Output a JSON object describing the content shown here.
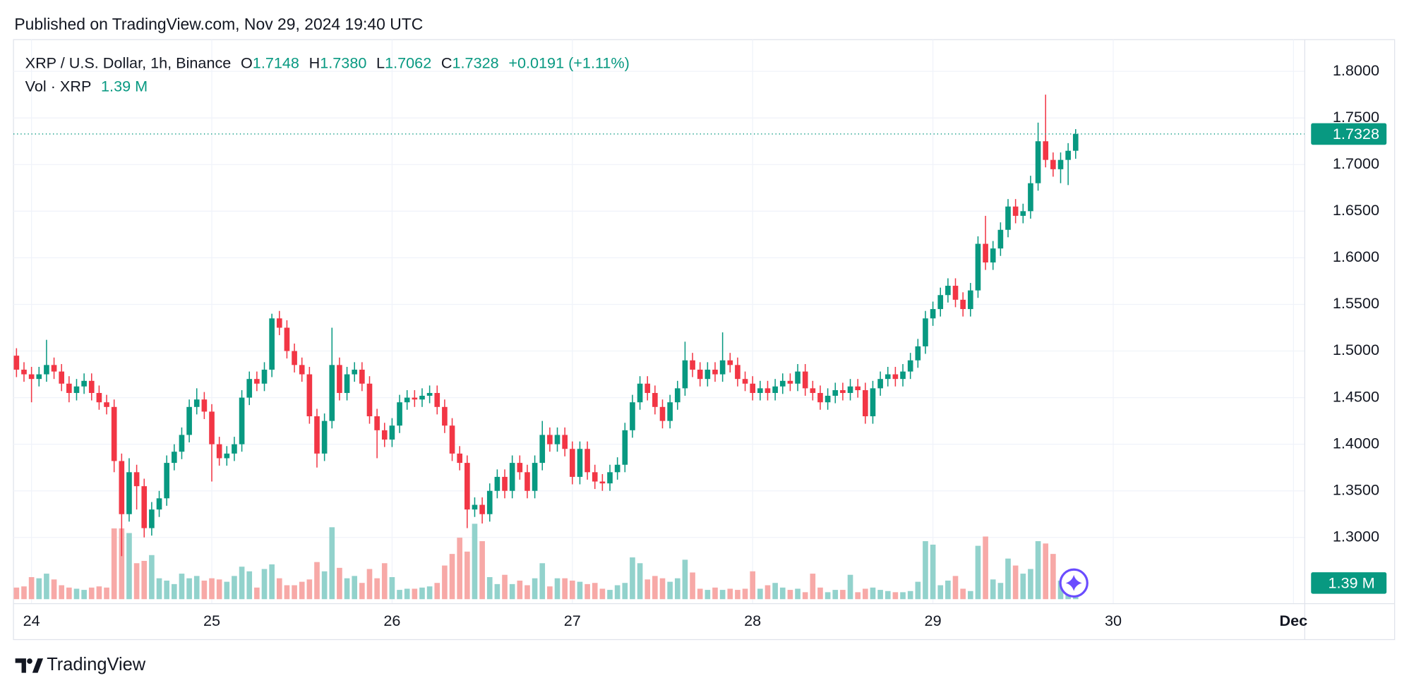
{
  "header": {
    "published": "Published on TradingView.com, Nov 29, 2024 19:40 UTC"
  },
  "legend": {
    "symbol": "XRP / U.S. Dollar, 1h, Binance",
    "ohlc": [
      {
        "key": "O",
        "text": "1.7148"
      },
      {
        "key": "H",
        "text": "1.7380"
      },
      {
        "key": "L",
        "text": "1.7062"
      },
      {
        "key": "C",
        "text": "1.7328"
      }
    ],
    "change": "+0.0191 (+1.11%)",
    "volume_name": "Vol · XRP",
    "volume_text": "1.39 M"
  },
  "footer": {
    "brand": "TradingView"
  },
  "chart_data": {
    "type": "candlestick",
    "up_color": "#089981",
    "down_color": "#f23645",
    "up_volume_color": "#92d2cc",
    "down_volume_color": "#f7a9a7",
    "grid": true,
    "xlim": [
      -0.4,
      171.5
    ],
    "xticks": [
      {
        "value": 2,
        "label": "24"
      },
      {
        "value": 26,
        "label": "25"
      },
      {
        "value": 50,
        "label": "26"
      },
      {
        "value": 74,
        "label": "27"
      },
      {
        "value": 98,
        "label": "28"
      },
      {
        "value": 122,
        "label": "29"
      },
      {
        "value": 146,
        "label": "30"
      },
      {
        "value": 170,
        "label": "Dec"
      }
    ],
    "ylim": [
      1.229,
      1.834
    ],
    "yticks": [
      {
        "value": 1.3,
        "label": "1.3000"
      },
      {
        "value": 1.35,
        "label": "1.3500"
      },
      {
        "value": 1.4,
        "label": "1.4000"
      },
      {
        "value": 1.45,
        "label": "1.4500"
      },
      {
        "value": 1.5,
        "label": "1.5000"
      },
      {
        "value": 1.55,
        "label": "1.5500"
      },
      {
        "value": 1.6,
        "label": "1.6000"
      },
      {
        "value": 1.65,
        "label": "1.6500"
      },
      {
        "value": 1.7,
        "label": "1.7000"
      },
      {
        "value": 1.75,
        "label": "1.7500"
      },
      {
        "value": 1.8,
        "label": "1.8000"
      }
    ],
    "volume_ylim": [
      0,
      12
    ],
    "volume_label": "1.39 M",
    "open": [
      1.495,
      1.48,
      1.475,
      1.47,
      1.475,
      1.485,
      1.478,
      1.465,
      1.455,
      1.462,
      1.468,
      1.455,
      1.445,
      1.44,
      1.382,
      1.325,
      1.37,
      1.355,
      1.31,
      1.33,
      1.342,
      1.38,
      1.392,
      1.41,
      1.44,
      1.448,
      1.435,
      1.4,
      1.385,
      1.39,
      1.4,
      1.45,
      1.47,
      1.465,
      1.48,
      1.535,
      1.525,
      1.5,
      1.485,
      1.475,
      1.43,
      1.39,
      1.425,
      1.485,
      1.455,
      1.475,
      1.48,
      1.465,
      1.43,
      1.415,
      1.405,
      1.42,
      1.445,
      1.45,
      1.448,
      1.452,
      1.455,
      1.44,
      1.42,
      1.39,
      1.38,
      1.33,
      1.335,
      1.325,
      1.35,
      1.365,
      1.35,
      1.38,
      1.37,
      1.35,
      1.38,
      1.41,
      1.4,
      1.41,
      1.395,
      1.365,
      1.395,
      1.37,
      1.36,
      1.358,
      1.37,
      1.378,
      1.415,
      1.445,
      1.465,
      1.455,
      1.44,
      1.425,
      1.445,
      1.46,
      1.49,
      1.48,
      1.47,
      1.48,
      1.475,
      1.49,
      1.485,
      1.47,
      1.465,
      1.455,
      1.46,
      1.455,
      1.462,
      1.468,
      1.465,
      1.478,
      1.46,
      1.455,
      1.445,
      1.452,
      1.458,
      1.455,
      1.462,
      1.458,
      1.43,
      1.46,
      1.47,
      1.475,
      1.47,
      1.478,
      1.49,
      1.505,
      1.535,
      1.545,
      1.56,
      1.57,
      1.555,
      1.545,
      1.565,
      1.615,
      1.595,
      1.61,
      1.63,
      1.655,
      1.645,
      1.65,
      1.68,
      1.725,
      1.705,
      1.695,
      1.705,
      1.7148
    ],
    "high": [
      1.503,
      1.488,
      1.483,
      1.483,
      1.512,
      1.493,
      1.486,
      1.473,
      1.47,
      1.476,
      1.476,
      1.463,
      1.453,
      1.448,
      1.39,
      1.385,
      1.378,
      1.363,
      1.338,
      1.35,
      1.388,
      1.4,
      1.418,
      1.448,
      1.46,
      1.456,
      1.443,
      1.408,
      1.398,
      1.408,
      1.458,
      1.478,
      1.478,
      1.488,
      1.54,
      1.543,
      1.533,
      1.508,
      1.493,
      1.483,
      1.438,
      1.433,
      1.525,
      1.493,
      1.483,
      1.488,
      1.488,
      1.473,
      1.438,
      1.423,
      1.428,
      1.453,
      1.458,
      1.458,
      1.46,
      1.463,
      1.463,
      1.448,
      1.428,
      1.398,
      1.388,
      1.343,
      1.343,
      1.358,
      1.373,
      1.373,
      1.388,
      1.388,
      1.378,
      1.388,
      1.425,
      1.418,
      1.418,
      1.418,
      1.403,
      1.403,
      1.403,
      1.378,
      1.368,
      1.378,
      1.386,
      1.423,
      1.453,
      1.473,
      1.473,
      1.463,
      1.448,
      1.453,
      1.468,
      1.51,
      1.498,
      1.488,
      1.488,
      1.488,
      1.52,
      1.498,
      1.493,
      1.478,
      1.473,
      1.468,
      1.468,
      1.47,
      1.476,
      1.476,
      1.486,
      1.486,
      1.468,
      1.463,
      1.46,
      1.466,
      1.466,
      1.47,
      1.47,
      1.466,
      1.468,
      1.478,
      1.483,
      1.483,
      1.486,
      1.498,
      1.513,
      1.543,
      1.553,
      1.568,
      1.578,
      1.578,
      1.563,
      1.573,
      1.623,
      1.645,
      1.618,
      1.638,
      1.663,
      1.663,
      1.658,
      1.688,
      1.745,
      1.775,
      1.713,
      1.713,
      1.723,
      1.738
    ],
    "low": [
      1.472,
      1.467,
      1.445,
      1.462,
      1.467,
      1.47,
      1.457,
      1.445,
      1.447,
      1.454,
      1.447,
      1.437,
      1.432,
      1.37,
      1.28,
      1.317,
      1.33,
      1.3,
      1.302,
      1.322,
      1.334,
      1.372,
      1.384,
      1.402,
      1.432,
      1.427,
      1.36,
      1.377,
      1.377,
      1.382,
      1.392,
      1.442,
      1.457,
      1.457,
      1.472,
      1.517,
      1.492,
      1.477,
      1.467,
      1.422,
      1.375,
      1.382,
      1.417,
      1.447,
      1.447,
      1.467,
      1.457,
      1.422,
      1.385,
      1.397,
      1.397,
      1.412,
      1.437,
      1.44,
      1.44,
      1.444,
      1.432,
      1.412,
      1.382,
      1.372,
      1.31,
      1.322,
      1.315,
      1.317,
      1.342,
      1.342,
      1.342,
      1.362,
      1.342,
      1.342,
      1.372,
      1.392,
      1.392,
      1.387,
      1.357,
      1.357,
      1.362,
      1.352,
      1.35,
      1.35,
      1.362,
      1.37,
      1.407,
      1.437,
      1.447,
      1.432,
      1.417,
      1.417,
      1.437,
      1.452,
      1.472,
      1.462,
      1.462,
      1.467,
      1.467,
      1.477,
      1.462,
      1.457,
      1.447,
      1.447,
      1.447,
      1.447,
      1.454,
      1.457,
      1.457,
      1.452,
      1.447,
      1.437,
      1.437,
      1.444,
      1.447,
      1.447,
      1.45,
      1.422,
      1.422,
      1.452,
      1.462,
      1.462,
      1.462,
      1.47,
      1.482,
      1.497,
      1.527,
      1.537,
      1.552,
      1.547,
      1.537,
      1.537,
      1.557,
      1.587,
      1.587,
      1.602,
      1.622,
      1.637,
      1.637,
      1.642,
      1.672,
      1.697,
      1.687,
      1.68,
      1.678,
      1.7062
    ],
    "close": [
      1.48,
      1.475,
      1.47,
      1.475,
      1.485,
      1.478,
      1.465,
      1.455,
      1.462,
      1.468,
      1.455,
      1.445,
      1.44,
      1.382,
      1.325,
      1.37,
      1.355,
      1.31,
      1.33,
      1.342,
      1.38,
      1.392,
      1.41,
      1.44,
      1.448,
      1.435,
      1.4,
      1.385,
      1.39,
      1.4,
      1.45,
      1.47,
      1.465,
      1.48,
      1.535,
      1.525,
      1.5,
      1.485,
      1.475,
      1.43,
      1.39,
      1.425,
      1.485,
      1.455,
      1.475,
      1.48,
      1.465,
      1.43,
      1.415,
      1.405,
      1.42,
      1.445,
      1.45,
      1.448,
      1.452,
      1.455,
      1.44,
      1.42,
      1.39,
      1.38,
      1.33,
      1.335,
      1.325,
      1.35,
      1.365,
      1.35,
      1.38,
      1.37,
      1.35,
      1.38,
      1.41,
      1.4,
      1.41,
      1.395,
      1.365,
      1.395,
      1.37,
      1.36,
      1.358,
      1.37,
      1.378,
      1.415,
      1.445,
      1.465,
      1.455,
      1.44,
      1.425,
      1.445,
      1.46,
      1.49,
      1.48,
      1.47,
      1.48,
      1.475,
      1.49,
      1.485,
      1.47,
      1.465,
      1.455,
      1.46,
      1.455,
      1.462,
      1.468,
      1.465,
      1.478,
      1.46,
      1.455,
      1.445,
      1.452,
      1.458,
      1.455,
      1.462,
      1.458,
      1.43,
      1.46,
      1.47,
      1.475,
      1.47,
      1.478,
      1.49,
      1.505,
      1.535,
      1.545,
      1.56,
      1.57,
      1.555,
      1.545,
      1.565,
      1.615,
      1.595,
      1.61,
      1.63,
      1.655,
      1.645,
      1.65,
      1.68,
      1.725,
      1.705,
      1.695,
      1.705,
      1.7148,
      1.7328
    ],
    "volume": [
      1.0,
      1.1,
      1.9,
      1.8,
      2.2,
      1.7,
      1.2,
      1.0,
      0.9,
      0.8,
      1.0,
      1.1,
      1.0,
      6.1,
      6.1,
      5.7,
      3.1,
      3.3,
      3.8,
      1.8,
      1.6,
      1.3,
      2.2,
      1.8,
      2.0,
      1.6,
      1.8,
      1.7,
      1.5,
      2.0,
      2.8,
      2.4,
      1.0,
      2.6,
      3.0,
      1.8,
      1.2,
      1.2,
      1.5,
      1.7,
      3.2,
      2.4,
      6.2,
      2.7,
      1.8,
      2.0,
      1.4,
      2.6,
      1.8,
      3.1,
      1.9,
      0.8,
      0.9,
      0.9,
      1.0,
      1.1,
      1.4,
      2.9,
      3.9,
      5.3,
      4.1,
      6.5,
      5.0,
      1.9,
      1.3,
      2.1,
      1.3,
      1.6,
      1.2,
      1.8,
      3.1,
      1.1,
      1.8,
      1.8,
      1.6,
      1.5,
      1.3,
      1.4,
      0.9,
      0.8,
      1.2,
      1.4,
      3.6,
      3.1,
      1.7,
      2.0,
      1.8,
      1.5,
      1.8,
      3.4,
      2.3,
      0.9,
      0.8,
      1.0,
      0.8,
      0.9,
      0.8,
      0.9,
      2.4,
      0.9,
      1.2,
      1.4,
      1.0,
      0.8,
      0.9,
      0.6,
      2.2,
      1.0,
      0.6,
      0.8,
      0.8,
      2.1,
      0.6,
      0.9,
      1.0,
      0.8,
      0.7,
      0.6,
      0.6,
      0.7,
      1.5,
      5.0,
      4.7,
      1.2,
      1.6,
      2.0,
      0.9,
      0.7,
      4.6,
      5.4,
      1.7,
      1.4,
      3.5,
      2.9,
      2.2,
      2.6,
      5.0,
      4.8,
      3.9,
      1.6,
      1.2,
      1.39
    ]
  }
}
